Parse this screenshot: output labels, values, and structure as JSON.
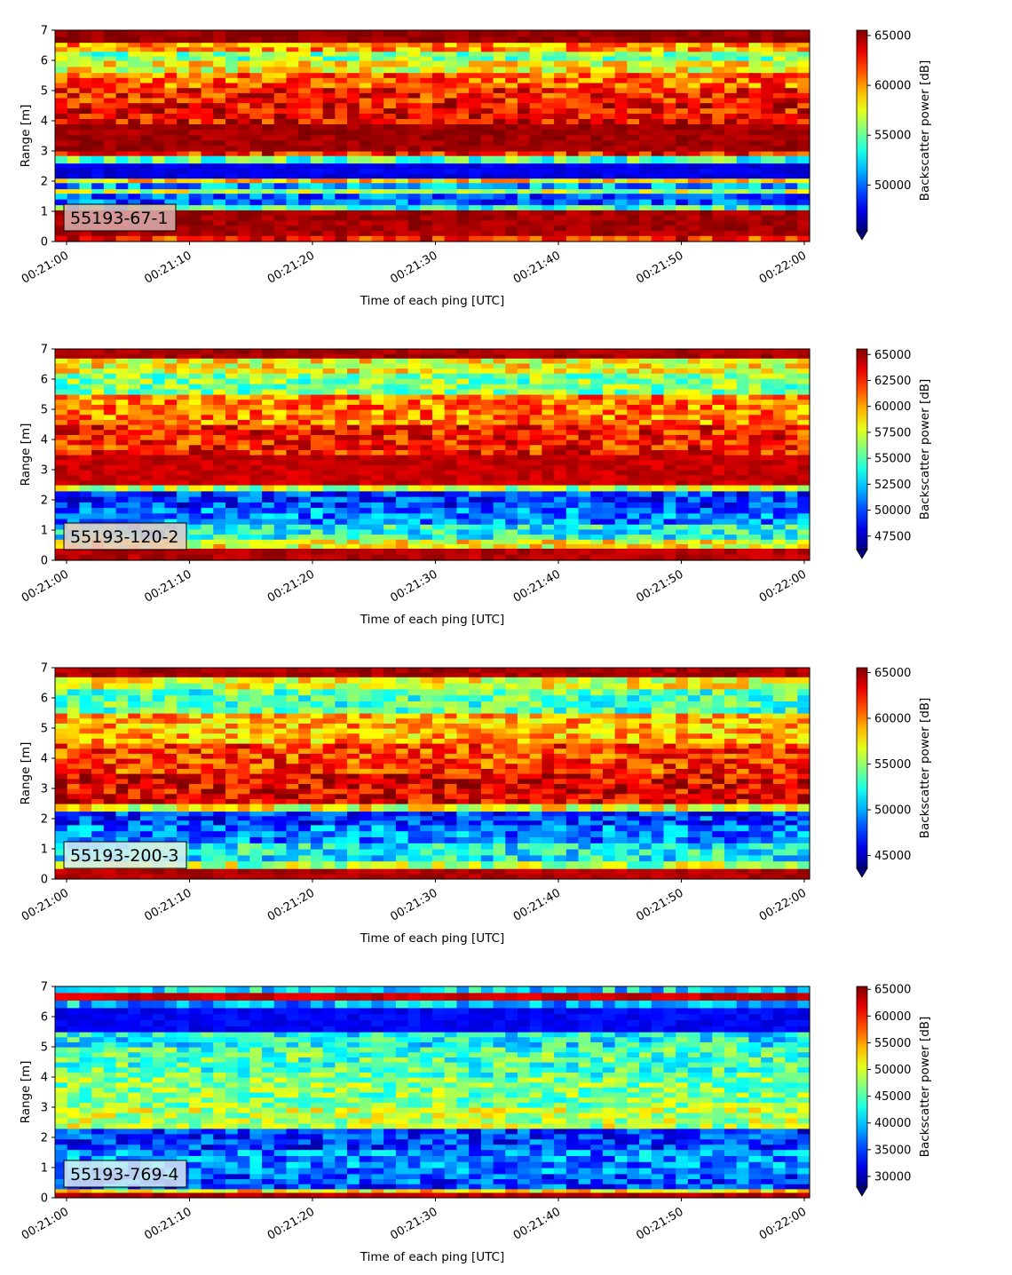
{
  "chart_data": [
    {
      "type": "heatmap",
      "badge": "55193-67-1",
      "badge_color": "#dcb0b0",
      "xlabel": "Time of each ping [UTC]",
      "ylabel": "Range [m]",
      "colorbar_label": "Backscatter power [dB]",
      "colormap": "jet",
      "x_ticks": [
        "00:21:00",
        "00:21:10",
        "00:21:20",
        "00:21:30",
        "00:21:40",
        "00:21:50",
        "00:22:00"
      ],
      "y_ticks": [
        0,
        1,
        2,
        3,
        4,
        5,
        6,
        7
      ],
      "ylim": [
        0,
        7
      ],
      "color_range": [
        45400,
        65535
      ],
      "colorbar_ticks": [
        "50000",
        "55000",
        "60000",
        "65000"
      ],
      "colorbar_tick_values": [
        50000,
        55000,
        60000,
        65000
      ],
      "bands": [
        [
          0,
          0.2,
          0.85
        ],
        [
          0.2,
          1.05,
          0.96
        ],
        [
          1.05,
          1.22,
          0.42
        ],
        [
          1.22,
          1.6,
          0.22
        ],
        [
          1.6,
          1.75,
          0.55
        ],
        [
          1.75,
          1.95,
          0.28
        ],
        [
          1.95,
          2.1,
          0.65
        ],
        [
          2.1,
          2.6,
          0.1
        ],
        [
          2.6,
          2.85,
          0.45
        ],
        [
          2.85,
          3.0,
          0.85
        ],
        [
          3.0,
          3.9,
          0.97
        ],
        [
          3.9,
          4.6,
          0.88
        ],
        [
          4.6,
          5.1,
          0.85
        ],
        [
          5.1,
          5.6,
          0.78
        ],
        [
          5.6,
          6.0,
          0.62
        ],
        [
          6.0,
          6.3,
          0.5
        ],
        [
          6.3,
          6.6,
          0.72
        ],
        [
          6.6,
          7.0,
          0.98
        ]
      ]
    },
    {
      "type": "heatmap",
      "badge": "55193-120-2",
      "badge_color": "#e8c8c8",
      "xlabel": "Time of each ping [UTC]",
      "ylabel": "Range [m]",
      "colorbar_label": "Backscatter power [dB]",
      "colormap": "jet",
      "x_ticks": [
        "00:21:00",
        "00:21:10",
        "00:21:20",
        "00:21:30",
        "00:21:40",
        "00:21:50",
        "00:22:00"
      ],
      "y_ticks": [
        0,
        1,
        2,
        3,
        4,
        5,
        6,
        7
      ],
      "ylim": [
        0,
        7
      ],
      "color_range": [
        46200,
        65535
      ],
      "colorbar_ticks": [
        "47500",
        "50000",
        "52500",
        "55000",
        "57500",
        "60000",
        "62500",
        "65000"
      ],
      "colorbar_tick_values": [
        47500,
        50000,
        52500,
        55000,
        57500,
        60000,
        62500,
        65000
      ],
      "bands": [
        [
          0,
          0.4,
          0.95
        ],
        [
          0.4,
          0.7,
          0.62
        ],
        [
          0.7,
          1.2,
          0.4
        ],
        [
          1.2,
          1.75,
          0.25
        ],
        [
          1.75,
          2.3,
          0.18
        ],
        [
          2.3,
          2.5,
          0.55
        ],
        [
          2.5,
          3.5,
          0.93
        ],
        [
          3.5,
          4.5,
          0.85
        ],
        [
          4.5,
          5.5,
          0.75
        ],
        [
          5.5,
          6.2,
          0.5
        ],
        [
          6.2,
          6.7,
          0.62
        ],
        [
          6.7,
          7.0,
          0.96
        ]
      ]
    },
    {
      "type": "heatmap",
      "badge": "55193-200-3",
      "badge_color": "#d8ecf2",
      "xlabel": "Time of each ping [UTC]",
      "ylabel": "Range [m]",
      "colorbar_label": "Backscatter power [dB]",
      "colormap": "jet",
      "x_ticks": [
        "00:21:00",
        "00:21:10",
        "00:21:20",
        "00:21:30",
        "00:21:40",
        "00:21:50",
        "00:22:00"
      ],
      "y_ticks": [
        0,
        1,
        2,
        3,
        4,
        5,
        6,
        7
      ],
      "ylim": [
        0,
        7
      ],
      "color_range": [
        43600,
        65535
      ],
      "colorbar_ticks": [
        "45000",
        "50000",
        "55000",
        "60000",
        "65000"
      ],
      "colorbar_tick_values": [
        45000,
        50000,
        55000,
        60000,
        65000
      ],
      "bands": [
        [
          0,
          0.35,
          0.95
        ],
        [
          0.35,
          0.6,
          0.55
        ],
        [
          0.6,
          1.2,
          0.38
        ],
        [
          1.2,
          1.8,
          0.25
        ],
        [
          1.8,
          2.25,
          0.18
        ],
        [
          2.25,
          2.5,
          0.6
        ],
        [
          2.5,
          3.5,
          0.9
        ],
        [
          3.5,
          4.5,
          0.82
        ],
        [
          4.5,
          5.5,
          0.7
        ],
        [
          5.5,
          6.3,
          0.45
        ],
        [
          6.3,
          6.7,
          0.6
        ],
        [
          6.7,
          7.0,
          0.96
        ]
      ]
    },
    {
      "type": "heatmap",
      "badge": "55193-769-4",
      "badge_color": "#d8ecf2",
      "xlabel": "Time of each ping [UTC]",
      "ylabel": "Range [m]",
      "colorbar_label": "Backscatter power [dB]",
      "colormap": "jet",
      "x_ticks": [
        "00:21:00",
        "00:21:10",
        "00:21:20",
        "00:21:30",
        "00:21:40",
        "00:21:50",
        "00:22:00"
      ],
      "y_ticks": [
        0,
        1,
        2,
        3,
        4,
        5,
        6,
        7
      ],
      "ylim": [
        0,
        7
      ],
      "color_range": [
        28000,
        65535
      ],
      "colorbar_ticks": [
        "30000",
        "35000",
        "40000",
        "45000",
        "50000",
        "55000",
        "60000",
        "65000"
      ],
      "colorbar_tick_values": [
        30000,
        35000,
        40000,
        45000,
        50000,
        55000,
        60000,
        65000
      ],
      "bands": [
        [
          0,
          0.18,
          0.95
        ],
        [
          0.18,
          0.3,
          0.65
        ],
        [
          0.3,
          0.8,
          0.2
        ],
        [
          0.8,
          1.6,
          0.26
        ],
        [
          1.6,
          2.3,
          0.18
        ],
        [
          2.3,
          3.0,
          0.55
        ],
        [
          3.0,
          4.0,
          0.5
        ],
        [
          4.0,
          5.0,
          0.45
        ],
        [
          5.0,
          5.5,
          0.38
        ],
        [
          5.5,
          6.3,
          0.12
        ],
        [
          6.3,
          6.55,
          0.3
        ],
        [
          6.55,
          6.8,
          0.92
        ],
        [
          6.8,
          7.0,
          0.35
        ]
      ]
    }
  ]
}
